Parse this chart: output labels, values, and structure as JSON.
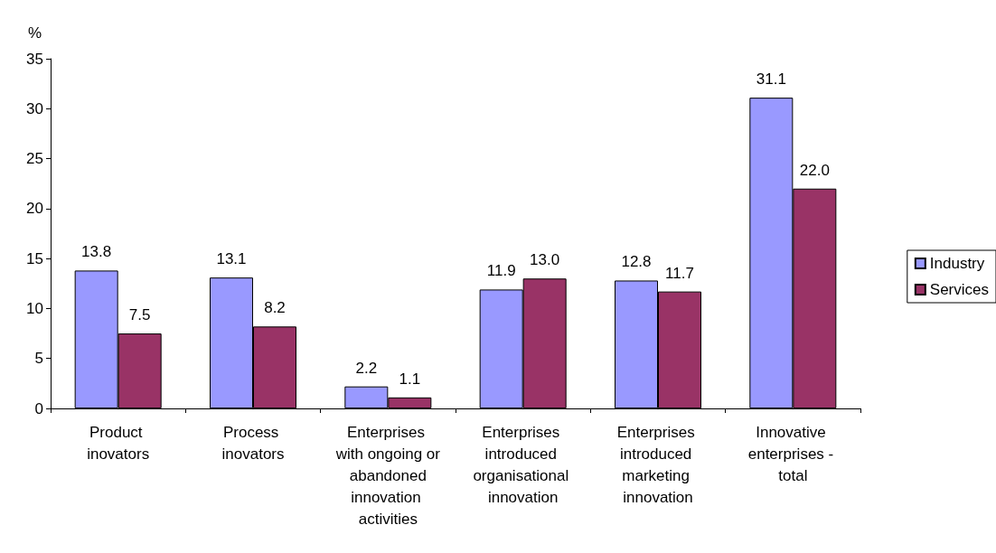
{
  "chart_data": {
    "type": "bar",
    "ylabel": "%",
    "categories": [
      "Product inovators",
      "Process inovators",
      "Enterprises with ongoing or abandoned innovation activities",
      "Enterprises introduced organisational innovation",
      "Enterprises introduced marketing innovation",
      "Innovative enterprises - total"
    ],
    "series": [
      {
        "name": "Industry",
        "color": "#9999ff",
        "values": [
          13.8,
          13.1,
          2.2,
          11.9,
          12.8,
          31.1
        ],
        "value_labels": [
          "13.8",
          "13.1",
          "2.2",
          "11.9",
          "12.8",
          "31.1"
        ]
      },
      {
        "name": "Services",
        "color": "#993366",
        "values": [
          7.5,
          8.2,
          1.1,
          13.0,
          11.7,
          22.0
        ],
        "value_labels": [
          "7.5",
          "8.2",
          "1.1",
          "13.0",
          "11.7",
          "22.0"
        ]
      }
    ],
    "ylim": [
      0,
      35
    ],
    "yticks": [
      0,
      5,
      10,
      15,
      20,
      25,
      30,
      35
    ],
    "grid": false,
    "legend": "right"
  }
}
